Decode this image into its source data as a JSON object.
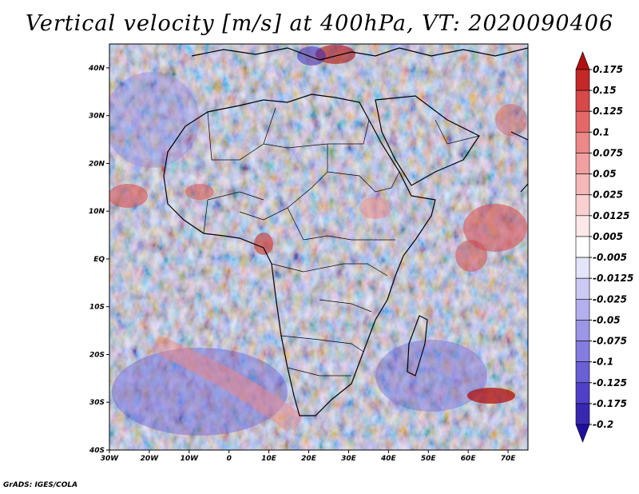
{
  "title": "Vertical velocity [m/s] at 400hPa, VT: 2020090406",
  "footer": "GrADS: IGES/COLA",
  "map": {
    "lon_range": [
      -30,
      75
    ],
    "lat_range": [
      -40,
      45
    ],
    "lat_ticks": [
      "40N",
      "30N",
      "20N",
      "10N",
      "EQ",
      "10S",
      "20S",
      "30S",
      "40S"
    ],
    "lon_ticks": [
      "30W",
      "20W",
      "10W",
      "0",
      "10E",
      "20E",
      "30E",
      "40E",
      "50E",
      "60E",
      "70E"
    ]
  },
  "colorbar": {
    "labels": [
      "0.175",
      "0.15",
      "0.125",
      "0.1",
      "0.075",
      "0.05",
      "0.025",
      "0.0125",
      "0.005",
      "-0.005",
      "-0.0125",
      "-0.025",
      "-0.05",
      "-0.075",
      "-0.1",
      "-0.125",
      "-0.175",
      "-0.2"
    ],
    "colors": [
      "#b01010",
      "#c42828",
      "#d84848",
      "#e46868",
      "#ec8888",
      "#f0a0a0",
      "#f4b8b8",
      "#f8d0d0",
      "#fce8e8",
      "#ffffff",
      "#e4e4fa",
      "#cccaf4",
      "#b4b0ee",
      "#9c96e6",
      "#847ce0",
      "#6a60d6",
      "#5040c8",
      "#3828b0",
      "#2010a0"
    ]
  }
}
